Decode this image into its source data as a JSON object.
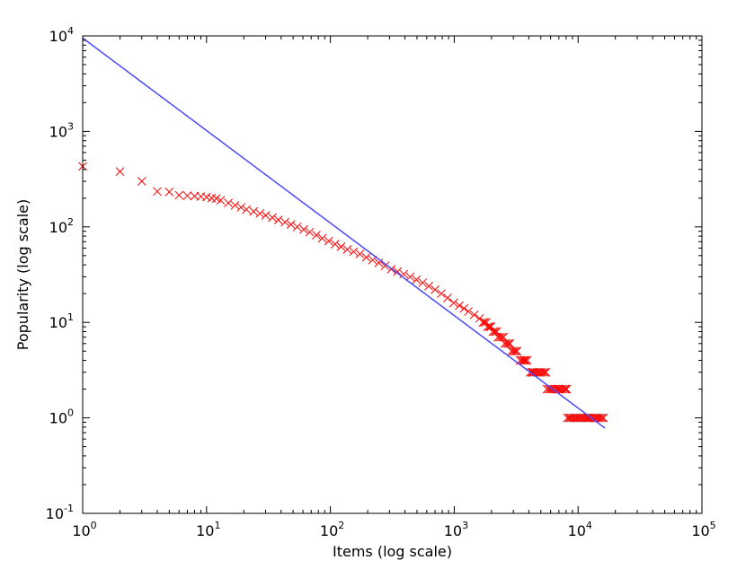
{
  "chart_data": {
    "type": "scatter",
    "title": "",
    "xlabel": "Items (log scale)",
    "ylabel": "Popularity (log scale)",
    "xscale": "log",
    "yscale": "log",
    "xlim": [
      1,
      100000
    ],
    "ylim": [
      0.1,
      10000
    ],
    "grid": false,
    "x_ticks": [
      {
        "base": "10",
        "exp": "0",
        "value": 1
      },
      {
        "base": "10",
        "exp": "1",
        "value": 10
      },
      {
        "base": "10",
        "exp": "2",
        "value": 100
      },
      {
        "base": "10",
        "exp": "3",
        "value": 1000
      },
      {
        "base": "10",
        "exp": "4",
        "value": 10000
      },
      {
        "base": "10",
        "exp": "5",
        "value": 100000
      }
    ],
    "y_ticks": [
      {
        "base": "10",
        "exp": "-1",
        "value": 0.1
      },
      {
        "base": "10",
        "exp": "0",
        "value": 1
      },
      {
        "base": "10",
        "exp": "1",
        "value": 10
      },
      {
        "base": "10",
        "exp": "2",
        "value": 100
      },
      {
        "base": "10",
        "exp": "3",
        "value": 1000
      },
      {
        "base": "10",
        "exp": "4",
        "value": 10000
      }
    ],
    "series": [
      {
        "kind": "scatter",
        "marker": "x",
        "color": "#ff0000",
        "points": [
          [
            1,
            430
          ],
          [
            2,
            380
          ],
          [
            3,
            300
          ],
          [
            4,
            235
          ],
          [
            5,
            232
          ],
          [
            6,
            215
          ],
          [
            7,
            212
          ],
          [
            8,
            210
          ],
          [
            9,
            208
          ],
          [
            10,
            205
          ],
          [
            11,
            200
          ],
          [
            12,
            198
          ],
          [
            13,
            190
          ],
          [
            15,
            178
          ],
          [
            17,
            168
          ],
          [
            19,
            160
          ],
          [
            21,
            152
          ],
          [
            24,
            145
          ],
          [
            27,
            138
          ],
          [
            30,
            132
          ],
          [
            34,
            125
          ],
          [
            38,
            118
          ],
          [
            43,
            112
          ],
          [
            48,
            106
          ],
          [
            54,
            100
          ],
          [
            61,
            94
          ],
          [
            68,
            88
          ],
          [
            77,
            82
          ],
          [
            86,
            76
          ],
          [
            97,
            71
          ],
          [
            109,
            66
          ],
          [
            122,
            62
          ],
          [
            137,
            58
          ],
          [
            154,
            55
          ],
          [
            173,
            52
          ],
          [
            195,
            48
          ],
          [
            219,
            45
          ],
          [
            246,
            42
          ],
          [
            276,
            39
          ],
          [
            310,
            36
          ],
          [
            348,
            34
          ],
          [
            391,
            32
          ],
          [
            440,
            30
          ],
          [
            494,
            28
          ],
          [
            555,
            26
          ],
          [
            623,
            24
          ],
          [
            700,
            22
          ],
          [
            786,
            20
          ],
          [
            883,
            18
          ],
          [
            990,
            16
          ],
          [
            1100,
            15
          ],
          [
            1200,
            14
          ],
          [
            1300,
            13
          ],
          [
            1450,
            12
          ],
          [
            1600,
            11
          ],
          [
            1750,
            10
          ],
          [
            1950,
            9
          ],
          [
            2200,
            8
          ],
          [
            2500,
            7
          ],
          [
            2800,
            6
          ],
          [
            3200,
            5
          ],
          [
            3700,
            4
          ],
          [
            4300,
            3
          ],
          [
            5500,
            3
          ],
          [
            6000,
            2
          ],
          [
            7000,
            2
          ],
          [
            8000,
            2
          ],
          [
            8500,
            1
          ],
          [
            10000,
            1
          ],
          [
            12000,
            1
          ],
          [
            14000,
            1
          ],
          [
            16000,
            1
          ]
        ],
        "horizontal_runs": [
          {
            "y": 1,
            "x_start": 8200,
            "x_end": 16500
          },
          {
            "y": 2,
            "x_start": 5600,
            "x_end": 8100
          },
          {
            "y": 3,
            "x_start": 4100,
            "x_end": 5500
          },
          {
            "y": 4,
            "x_start": 3400,
            "x_end": 4000
          },
          {
            "y": 5,
            "x_start": 2900,
            "x_end": 3300
          },
          {
            "y": 6,
            "x_start": 2550,
            "x_end": 2850
          },
          {
            "y": 7,
            "x_start": 2250,
            "x_end": 2500
          },
          {
            "y": 8,
            "x_start": 2050,
            "x_end": 2230
          },
          {
            "y": 9,
            "x_start": 1850,
            "x_end": 2000
          },
          {
            "y": 10,
            "x_start": 1700,
            "x_end": 1820
          }
        ]
      },
      {
        "kind": "line",
        "color": "#4a4aff",
        "points": [
          [
            1,
            9500
          ],
          [
            16500,
            0.78
          ]
        ]
      }
    ]
  }
}
